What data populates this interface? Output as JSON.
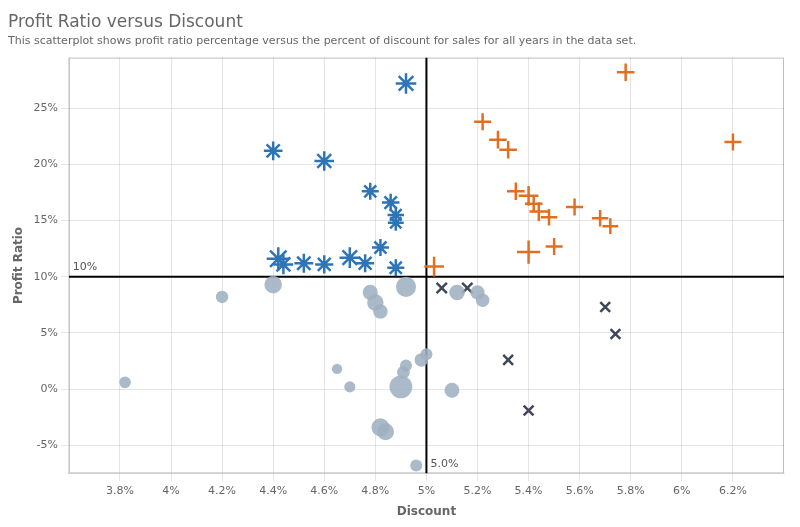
{
  "chart_data": {
    "type": "scatter",
    "title": "Profit Ratio versus Discount",
    "subtitle": "This scatterplot shows profit ratio percentage versus the percent of discount for sales for all years in the data set.",
    "xlabel": "Discount",
    "ylabel": "Profit Ratio",
    "xlim": [
      0.036,
      0.064
    ],
    "ylim": [
      -0.075,
      0.295
    ],
    "xticks": [
      {
        "value": 0.038,
        "label": "3.8%"
      },
      {
        "value": 0.04,
        "label": "4%"
      },
      {
        "value": 0.042,
        "label": "4.2%"
      },
      {
        "value": 0.044,
        "label": "4.4%"
      },
      {
        "value": 0.046,
        "label": "4.6%"
      },
      {
        "value": 0.048,
        "label": "4.8%"
      },
      {
        "value": 0.05,
        "label": "5%"
      },
      {
        "value": 0.052,
        "label": "5.2%"
      },
      {
        "value": 0.054,
        "label": "5.4%"
      },
      {
        "value": 0.056,
        "label": "5.6%"
      },
      {
        "value": 0.058,
        "label": "5.8%"
      },
      {
        "value": 0.06,
        "label": "6%"
      },
      {
        "value": 0.062,
        "label": "6.2%"
      }
    ],
    "yticks": [
      {
        "value": -0.05,
        "label": "-5%"
      },
      {
        "value": 0.0,
        "label": "0%"
      },
      {
        "value": 0.05,
        "label": "5%"
      },
      {
        "value": 0.1,
        "label": "10%"
      },
      {
        "value": 0.15,
        "label": "15%"
      },
      {
        "value": 0.2,
        "label": "20%"
      },
      {
        "value": 0.25,
        "label": "25%"
      }
    ],
    "grid": true,
    "annotations": [
      {
        "type": "vline",
        "x": 0.05,
        "text": "5.0%",
        "color": "#000000"
      },
      {
        "type": "hline",
        "y": 0.1,
        "text": "10%",
        "color": "#000000"
      }
    ],
    "series": [
      {
        "marker": "star",
        "color": "#2e75b6",
        "x": [
          0.0492,
          0.044,
          0.046,
          0.0478,
          0.0486,
          0.0488,
          0.0488,
          0.0442,
          0.0444,
          0.0452,
          0.046,
          0.047,
          0.0476,
          0.0482,
          0.0488
        ],
        "y": [
          0.272,
          0.212,
          0.203,
          0.176,
          0.166,
          0.155,
          0.148,
          0.116,
          0.111,
          0.112,
          0.111,
          0.117,
          0.112,
          0.126,
          0.108
        ],
        "sizes": [
          220,
          180,
          200,
          150,
          160,
          140,
          130,
          280,
          200,
          185,
          170,
          220,
          170,
          150,
          150
        ]
      },
      {
        "marker": "plus",
        "color": "#e07020",
        "x": [
          0.0503,
          0.0522,
          0.0528,
          0.0532,
          0.0535,
          0.054,
          0.0542,
          0.0544,
          0.0548,
          0.054,
          0.055,
          0.0558,
          0.0568,
          0.0572,
          0.0578,
          0.062
        ],
        "y": [
          0.109,
          0.238,
          0.222,
          0.213,
          0.176,
          0.172,
          0.165,
          0.158,
          0.153,
          0.122,
          0.127,
          0.162,
          0.152,
          0.145,
          0.282,
          0.22
        ],
        "sizes": [
          200,
          150,
          160,
          160,
          160,
          200,
          160,
          180,
          140,
          280,
          150,
          150,
          140,
          130,
          160,
          150
        ]
      },
      {
        "marker": "circle",
        "color": "#9fb0c0",
        "x": [
          0.0382,
          0.042,
          0.044,
          0.0465,
          0.047,
          0.0478,
          0.048,
          0.0482,
          0.0482,
          0.0484,
          0.049,
          0.0491,
          0.0492,
          0.0492,
          0.0496,
          0.0498,
          0.05,
          0.051,
          0.0512,
          0.052,
          0.0522
        ],
        "y": [
          0.006,
          0.082,
          0.093,
          0.018,
          0.002,
          0.086,
          0.077,
          0.069,
          -0.034,
          -0.038,
          0.002,
          0.015,
          0.021,
          0.091,
          -0.068,
          0.026,
          0.031,
          -0.001,
          0.086,
          0.086,
          0.079
        ],
        "sizes": [
          70,
          80,
          160,
          55,
          65,
          120,
          140,
          110,
          170,
          150,
          270,
          85,
          75,
          210,
          75,
          95,
          75,
          115,
          125,
          105,
          95
        ]
      },
      {
        "marker": "x",
        "color": "#404858",
        "x": [
          0.0506,
          0.0516,
          0.0532,
          0.054,
          0.057,
          0.0574
        ],
        "y": [
          0.09,
          0.09,
          0.026,
          -0.019,
          0.073,
          0.049
        ],
        "sizes": [
          110,
          110,
          100,
          100,
          100,
          100
        ]
      }
    ]
  }
}
